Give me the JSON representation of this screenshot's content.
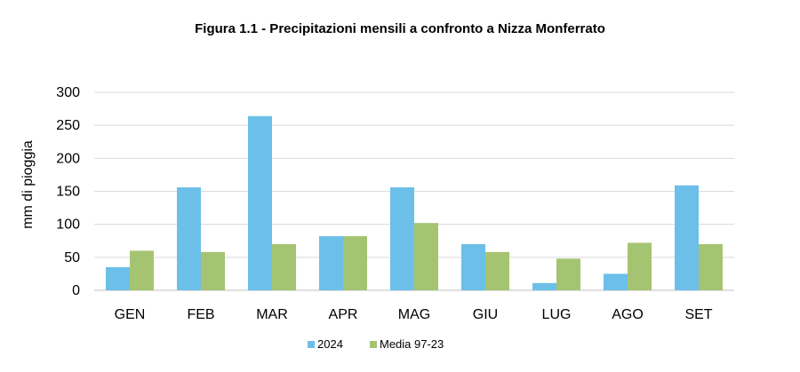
{
  "chart_data": {
    "type": "bar",
    "title": "Figura 1.1 - Precipitazioni mensili a confronto a Nizza Monferrato",
    "ylabel": "mm di pioggia",
    "xlabel": "",
    "ylim": [
      0,
      300
    ],
    "yticks": [
      "0",
      "50",
      "100",
      "150",
      "200",
      "250",
      "300"
    ],
    "grid": true,
    "legend_position": "bottom",
    "categories": [
      "GEN",
      "FEB",
      "MAR",
      "APR",
      "MAG",
      "GIU",
      "LUG",
      "AGO",
      "SET"
    ],
    "series": [
      {
        "name": "2024",
        "color": "#6cbfe8",
        "values": [
          35,
          156,
          264,
          82,
          156,
          70,
          11,
          25,
          159
        ]
      },
      {
        "name": "Media 97-23",
        "color": "#a5c472",
        "values": [
          60,
          58,
          70,
          82,
          102,
          58,
          48,
          72,
          70
        ]
      }
    ]
  }
}
